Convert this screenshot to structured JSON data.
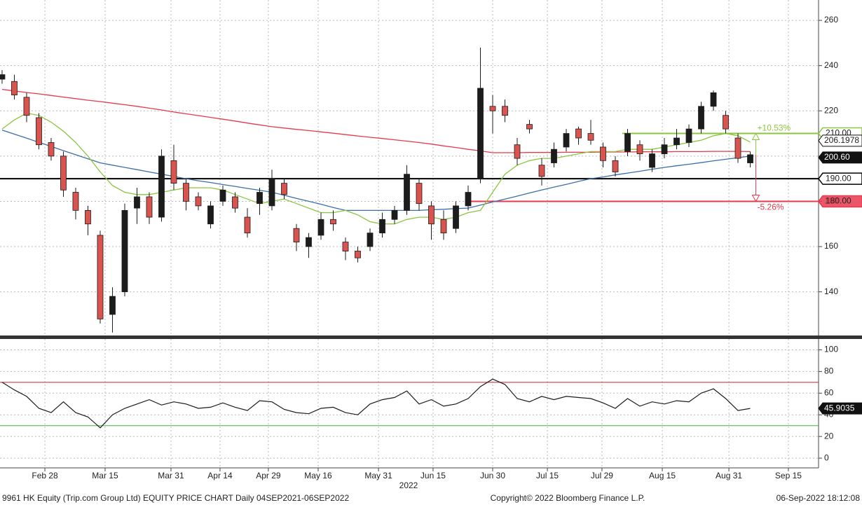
{
  "chart_data": [
    {
      "type": "candlestick",
      "ylim": [
        121,
        269
      ],
      "yticks": [
        140,
        160,
        180,
        200,
        220,
        240,
        260
      ],
      "grid": true,
      "xlim": [
        -0.17,
        66.57
      ],
      "up_color": "#1c1c1c",
      "down_color": "#d9534f",
      "ohlc": [
        [
          234,
          238,
          232,
          236
        ],
        [
          233,
          236,
          225,
          227
        ],
        [
          226,
          228,
          215,
          218
        ],
        [
          217,
          219,
          203,
          205
        ],
        [
          206,
          208,
          198,
          200
        ],
        [
          200,
          202,
          182,
          185
        ],
        [
          184,
          186,
          172,
          176
        ],
        [
          176,
          178,
          165,
          170
        ],
        [
          165,
          167,
          126,
          128
        ],
        [
          130,
          142,
          122,
          138
        ],
        [
          140,
          179,
          138,
          176
        ],
        [
          177,
          186,
          170,
          182
        ],
        [
          182,
          184,
          170,
          173
        ],
        [
          173,
          203,
          171,
          200
        ],
        [
          198,
          205,
          185,
          188
        ],
        [
          188,
          190,
          176,
          180
        ],
        [
          182,
          184,
          176,
          178
        ],
        [
          170,
          180,
          168,
          178
        ],
        [
          180,
          187,
          178,
          185
        ],
        [
          182,
          184,
          175,
          177
        ],
        [
          173,
          177,
          164,
          166
        ],
        [
          179,
          186,
          174,
          184
        ],
        [
          178,
          194,
          176,
          190
        ],
        [
          188,
          190,
          181,
          183
        ],
        [
          168,
          170,
          158,
          162
        ],
        [
          160,
          166,
          155,
          164
        ],
        [
          165,
          175,
          163,
          172
        ],
        [
          172,
          176,
          167,
          170
        ],
        [
          162,
          164,
          154,
          158
        ],
        [
          158,
          160,
          153,
          155
        ],
        [
          160,
          168,
          158,
          166
        ],
        [
          166,
          175,
          164,
          172
        ],
        [
          172,
          178,
          170,
          176
        ],
        [
          176,
          196,
          174,
          192
        ],
        [
          188,
          190,
          176,
          179
        ],
        [
          178,
          180,
          163,
          170
        ],
        [
          172,
          176,
          163,
          166
        ],
        [
          168,
          180,
          166,
          178
        ],
        [
          178,
          187,
          176,
          184
        ],
        [
          190,
          248,
          188,
          230
        ],
        [
          222,
          227,
          210,
          220
        ],
        [
          222,
          225,
          215,
          218
        ],
        [
          205,
          208,
          196,
          199
        ],
        [
          214,
          216,
          210,
          212
        ],
        [
          196,
          199,
          187,
          191
        ],
        [
          197,
          206,
          195,
          203
        ],
        [
          204,
          212,
          202,
          210
        ],
        [
          212,
          213,
          205,
          208
        ],
        [
          210,
          216,
          205,
          207
        ],
        [
          204,
          206,
          195,
          198
        ],
        [
          198,
          200,
          191,
          193
        ],
        [
          202,
          212,
          200,
          210
        ],
        [
          205,
          207,
          198,
          201
        ],
        [
          195,
          203,
          193,
          201
        ],
        [
          201,
          208,
          199,
          205
        ],
        [
          205,
          212,
          203,
          208
        ],
        [
          206,
          214,
          204,
          212
        ],
        [
          212,
          224,
          210,
          222
        ],
        [
          222,
          229,
          220,
          228
        ],
        [
          218,
          220,
          210,
          212
        ],
        [
          208,
          210,
          197,
          199
        ],
        [
          197,
          202,
          195,
          200.6
        ]
      ],
      "overlays": [
        {
          "color": "#e8394d",
          "values": [
            229.5,
            228.8,
            228.1,
            227.5,
            226.8,
            226.1,
            225.4,
            224.7,
            224.1,
            223.4,
            222.7,
            222,
            221.2,
            220.4,
            219.5,
            218.7,
            217.9,
            217.1,
            216.3,
            215.5,
            214.6,
            213.8,
            213,
            212.4,
            211.8,
            211.3,
            210.7,
            210.1,
            209.5,
            208.9,
            208.3,
            207.8,
            207.2,
            206.6,
            206,
            205.3,
            204.5,
            203.8,
            203,
            202.3,
            201.5,
            201.5,
            201.5,
            201.6,
            201.6,
            201.6,
            201.7,
            201.7,
            201.7,
            201.8,
            201.8,
            201.8,
            201.9,
            201.9,
            201.9,
            202,
            202,
            202,
            202.1,
            202.1,
            202.1,
            202
          ]
        },
        {
          "color": "#3b6fa8",
          "values": [
            211.5,
            209.7,
            207.9,
            206.1,
            204.3,
            202.4,
            200.6,
            198.8,
            197,
            196,
            195,
            194,
            193,
            192,
            191,
            190,
            189.1,
            188.3,
            187.4,
            186.6,
            185.7,
            184.9,
            184,
            182.7,
            181.3,
            180,
            178.7,
            177.3,
            176,
            176,
            176,
            176,
            176,
            176,
            176,
            176.3,
            176.5,
            176.8,
            177,
            178.3,
            179.7,
            181,
            182.3,
            183.7,
            185,
            186.3,
            187.5,
            188.8,
            190,
            190.8,
            191.7,
            192.5,
            193.3,
            194.2,
            195,
            195.7,
            196.4,
            197.1,
            197.9,
            198.6,
            199.3,
            200
          ]
        },
        {
          "color": "#8cc63f",
          "values": [
            212,
            216,
            219,
            218,
            215,
            211,
            206,
            200,
            193,
            187,
            184,
            183,
            183,
            184,
            185,
            186,
            186,
            186,
            185,
            183,
            181,
            179,
            180,
            181,
            179,
            177,
            175,
            175,
            176,
            174,
            171,
            170,
            170,
            172,
            173,
            173,
            172,
            173,
            175,
            176,
            184,
            192,
            196,
            198,
            199,
            199,
            200,
            201,
            202,
            202,
            202,
            203,
            203,
            203,
            204,
            205,
            206,
            207,
            209,
            210,
            209,
            206.1978
          ]
        }
      ],
      "levels": [
        {
          "value": 210,
          "label": "210.00",
          "color": "#8cc63f"
        },
        {
          "value": 190,
          "label": "190.00",
          "color": "#000000"
        },
        {
          "value": 180,
          "label": "180.00",
          "color": "#e8394d"
        }
      ],
      "last_labels": [
        {
          "value": 206.1978,
          "label": "206.1978"
        },
        {
          "value": 200.6,
          "label": "200.60"
        }
      ],
      "annotations": [
        {
          "text": "+10.53%",
          "color": "#8cc63f"
        },
        {
          "text": "-5.26%",
          "color": "#e8394d"
        }
      ]
    },
    {
      "type": "line",
      "ylim": [
        -9,
        110
      ],
      "yticks": [
        0,
        20,
        40,
        60,
        80,
        100
      ],
      "grid": true,
      "xlim": [
        -0.17,
        66.57
      ],
      "color": "#1c1c1c",
      "values": [
        70,
        63,
        57,
        46,
        42,
        52,
        42,
        38,
        28,
        40,
        46,
        50,
        54,
        49,
        52,
        50,
        46,
        47,
        51,
        47,
        44,
        53,
        52,
        45,
        42,
        41,
        46,
        47,
        42,
        40,
        50,
        54,
        56,
        62,
        50,
        54,
        48,
        50,
        55,
        66,
        73,
        68,
        55,
        52,
        57,
        54,
        57,
        56,
        55,
        51,
        46,
        55,
        48,
        52,
        50,
        53,
        52,
        60,
        64,
        55,
        44,
        45.9035
      ],
      "levels": [
        {
          "value": 70,
          "color": "#c8202f"
        },
        {
          "value": 30,
          "color": "#3cb83c"
        }
      ],
      "last_label": {
        "value": 45.9035,
        "label": "45.9035"
      },
      "xticks": [
        {
          "value": 3.49,
          "label": "Feb 28"
        },
        {
          "value": 8.4,
          "label": "Mar 15"
        },
        {
          "value": 13.77,
          "label": "Mar 31"
        },
        {
          "value": 17.77,
          "label": "Apr 14"
        },
        {
          "value": 21.71,
          "label": "Apr 29"
        },
        {
          "value": 25.77,
          "label": "May 16"
        },
        {
          "value": 30.69,
          "label": "May 31"
        },
        {
          "value": 35.14,
          "label": "Jun 15"
        },
        {
          "value": 40,
          "label": "Jun 30"
        },
        {
          "value": 44.46,
          "label": "Jul 15"
        },
        {
          "value": 48.91,
          "label": "Jul 29"
        },
        {
          "value": 53.83,
          "label": "Aug 15"
        },
        {
          "value": 59.26,
          "label": "Aug 31"
        },
        {
          "value": 64.11,
          "label": "Sep 15"
        }
      ],
      "year_label": "2022"
    }
  ],
  "footer": {
    "left": "9961 HK Equity (Trip.com Group Ltd) EQUITY PRICE CHART  Daily 04SEP2021-06SEP2022",
    "center": "Copyright© 2022 Bloomberg Finance L.P.",
    "right": "06-Sep-2022 18:12:08"
  }
}
